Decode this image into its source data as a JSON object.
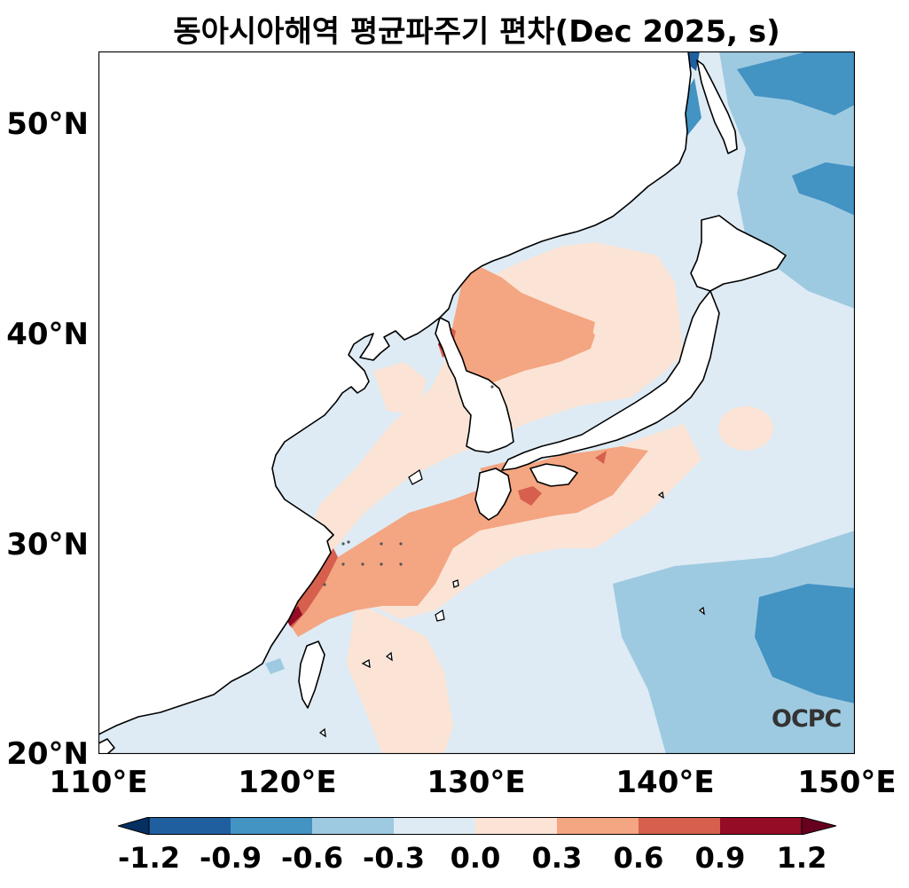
{
  "title": "동아시아해역 평균파주기 편차(Dec 2025, s)",
  "axes": {
    "y_ticks": [
      "50°N",
      "40°N",
      "30°N",
      "20°N"
    ],
    "x_ticks": [
      "110°E",
      "120°E",
      "130°E",
      "140°E",
      "150°E"
    ],
    "lat_range": [
      20,
      53.5
    ],
    "lon_range": [
      110,
      150
    ]
  },
  "colorbar": {
    "labels": [
      "-1.2",
      "-0.9",
      "-0.6",
      "-0.3",
      "0.0",
      "0.3",
      "0.6",
      "0.9",
      "1.2"
    ],
    "colors": [
      "#053061",
      "#1f5fa0",
      "#4393c3",
      "#9ecae1",
      "#deebf4",
      "#fbe4d6",
      "#f4a582",
      "#d6604d",
      "#940c26",
      "#67001f"
    ],
    "extend": "both"
  },
  "logo": "OCPC",
  "map_colors": {
    "land": "#ffffff",
    "coast": "#000000",
    "pale_blue": "#deebf4",
    "light_blue": "#9ecae1",
    "mid_blue": "#4393c3",
    "pale_red": "#fbe4d6",
    "light_red": "#f4a582",
    "mid_red": "#d6604d",
    "dark_red": "#940c26"
  }
}
